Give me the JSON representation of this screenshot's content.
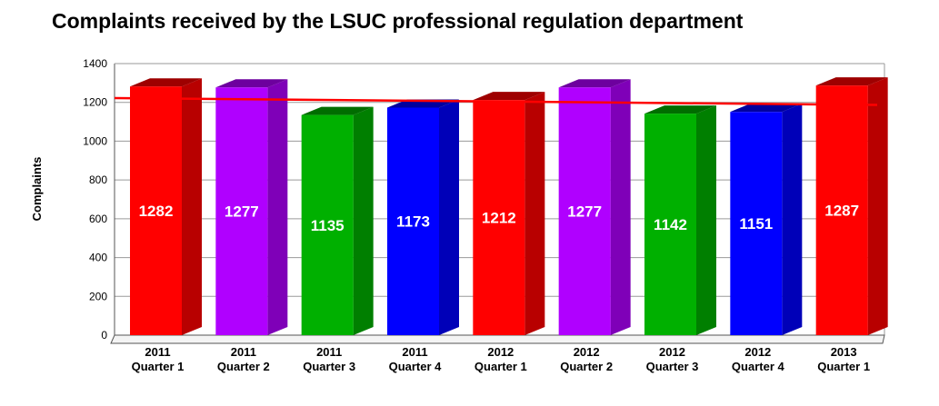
{
  "chart_data": {
    "type": "bar",
    "title": "Complaints received by the LSUC professional regulation department",
    "xlabel": "",
    "ylabel": "Complaints",
    "ylim": [
      0,
      1400
    ],
    "yticks": [
      0,
      200,
      400,
      600,
      800,
      1000,
      1200,
      1400
    ],
    "grid": true,
    "categories": [
      [
        "2011",
        "Quarter 1"
      ],
      [
        "2011",
        "Quarter 2"
      ],
      [
        "2011",
        "Quarter 3"
      ],
      [
        "2011",
        "Quarter 4"
      ],
      [
        "2012",
        "Quarter 1"
      ],
      [
        "2012",
        "Quarter 2"
      ],
      [
        "2012",
        "Quarter 3"
      ],
      [
        "2012",
        "Quarter 4"
      ],
      [
        "2013",
        "Quarter 1"
      ]
    ],
    "values": [
      1282,
      1277,
      1135,
      1173,
      1212,
      1277,
      1142,
      1151,
      1287
    ],
    "bar_colors": [
      "#ff0000",
      "#b000ff",
      "#00b000",
      "#0000ff",
      "#ff0000",
      "#b000ff",
      "#00b000",
      "#0000ff",
      "#ff0000"
    ],
    "trendline": {
      "start": 1222,
      "end": 1187,
      "color": "#ff0000"
    }
  }
}
